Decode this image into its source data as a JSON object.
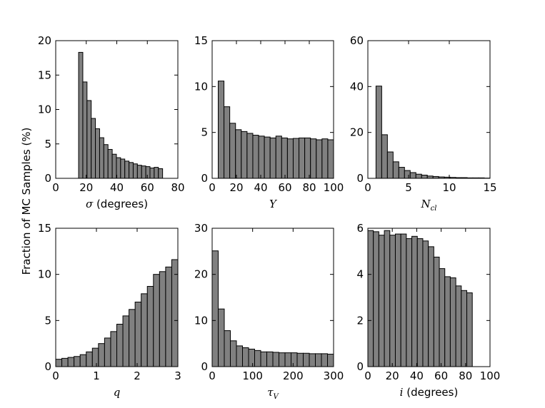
{
  "figure": {
    "ylabel": "Fraction of MC Samples (%)",
    "bar_color": "#808080"
  },
  "chart_data": [
    {
      "id": "sigma",
      "type": "bar",
      "xlabel_main": "σ",
      "xlabel_sub": "",
      "xlabel_suffix": " (degrees)",
      "xlabel_style": "italic-prefix",
      "xlim": [
        0,
        80
      ],
      "ylim": [
        0,
        20
      ],
      "xticks": [
        0,
        20,
        40,
        60,
        80
      ],
      "yticks": [
        0,
        5,
        10,
        15,
        20
      ],
      "bin_start": 15,
      "bin_width": 2.75,
      "values": [
        18.3,
        14.0,
        11.3,
        8.7,
        7.2,
        5.9,
        4.9,
        4.2,
        3.5,
        3.0,
        2.8,
        2.5,
        2.3,
        2.1,
        1.9,
        1.8,
        1.7,
        1.5,
        1.6,
        1.4
      ]
    },
    {
      "id": "Y",
      "type": "bar",
      "xlabel_main": "Y",
      "xlabel_sub": "",
      "xlabel_suffix": "",
      "xlabel_style": "italic",
      "xlim": [
        0,
        100
      ],
      "ylim": [
        0,
        15
      ],
      "xticks": [
        0,
        20,
        40,
        60,
        80,
        100
      ],
      "yticks": [
        0,
        5,
        10,
        15
      ],
      "bin_start": 5,
      "bin_width": 4.75,
      "values": [
        10.6,
        7.8,
        6.0,
        5.3,
        5.1,
        4.9,
        4.7,
        4.6,
        4.5,
        4.4,
        4.6,
        4.4,
        4.3,
        4.35,
        4.4,
        4.4,
        4.3,
        4.2,
        4.3,
        4.2
      ]
    },
    {
      "id": "Ncl",
      "type": "bar",
      "xlabel_main": "N",
      "xlabel_sub": "cl",
      "xlabel_suffix": "",
      "xlabel_style": "italic",
      "xlim": [
        0,
        15
      ],
      "ylim": [
        0,
        60
      ],
      "xticks": [
        0,
        5,
        10,
        15
      ],
      "yticks": [
        0,
        20,
        40,
        60
      ],
      "bin_start": 1,
      "bin_width": 0.7,
      "values": [
        40.2,
        19.0,
        11.5,
        7.2,
        4.8,
        3.4,
        2.5,
        1.8,
        1.4,
        1.0,
        0.8,
        0.6,
        0.5,
        0.4,
        0.3,
        0.3,
        0.2,
        0.2,
        0.2,
        0.1
      ]
    },
    {
      "id": "q",
      "type": "bar",
      "xlabel_main": "q",
      "xlabel_sub": "",
      "xlabel_suffix": "",
      "xlabel_style": "italic",
      "xlim": [
        0,
        3
      ],
      "ylim": [
        0,
        15
      ],
      "xticks": [
        0,
        1,
        2,
        3
      ],
      "yticks": [
        0,
        5,
        10,
        15
      ],
      "bin_start": 0,
      "bin_width": 0.15,
      "values": [
        0.8,
        0.9,
        1.0,
        1.1,
        1.3,
        1.6,
        2.0,
        2.5,
        3.1,
        3.8,
        4.6,
        5.5,
        6.2,
        7.0,
        7.9,
        8.7,
        10.0,
        10.3,
        10.8,
        11.6
      ]
    },
    {
      "id": "tauV",
      "type": "bar",
      "xlabel_main": "τ",
      "xlabel_sub": "V",
      "xlabel_suffix": "",
      "xlabel_style": "italic",
      "xlim": [
        0,
        300
      ],
      "ylim": [
        0,
        30
      ],
      "xticks": [
        0,
        100,
        200,
        300
      ],
      "yticks": [
        0,
        10,
        20,
        30
      ],
      "bin_start": 0,
      "bin_width": 15,
      "values": [
        25.1,
        12.5,
        7.8,
        5.6,
        4.5,
        4.1,
        3.8,
        3.5,
        3.2,
        3.2,
        3.1,
        3.0,
        3.0,
        3.0,
        2.9,
        2.9,
        2.8,
        2.8,
        2.8,
        2.7
      ]
    },
    {
      "id": "i",
      "type": "bar",
      "xlabel_main": "i",
      "xlabel_sub": "",
      "xlabel_suffix": " (degrees)",
      "xlabel_style": "italic-prefix",
      "xlim": [
        0,
        100
      ],
      "ylim": [
        0,
        6
      ],
      "xticks": [
        0,
        20,
        40,
        60,
        80,
        100
      ],
      "yticks": [
        0,
        2,
        4,
        6
      ],
      "bin_start": 0,
      "bin_width": 4.5,
      "values": [
        5.9,
        5.85,
        5.7,
        5.9,
        5.7,
        5.75,
        5.75,
        5.55,
        5.65,
        5.55,
        5.45,
        5.2,
        4.75,
        4.25,
        3.9,
        3.85,
        3.5,
        3.3,
        3.2,
        0
      ]
    }
  ]
}
